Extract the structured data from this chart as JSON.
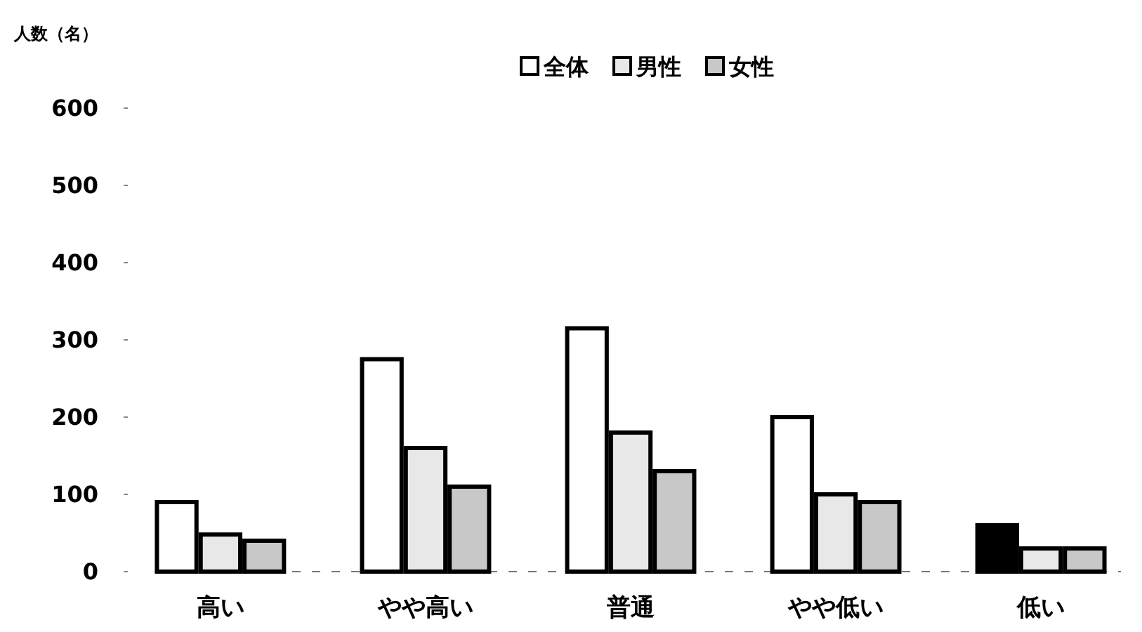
{
  "chart_data": {
    "type": "bar",
    "ylabel": "人数（名）",
    "categories": [
      "高い",
      "やや高い",
      "普通",
      "やや低い",
      "低い"
    ],
    "series": [
      {
        "name": "全体",
        "color": "#ffffff",
        "colors": [
          "#ffffff",
          "#ffffff",
          "#ffffff",
          "#ffffff",
          "#000000"
        ],
        "values": [
          90,
          275,
          315,
          200,
          60
        ]
      },
      {
        "name": "男性",
        "color": "#e8e8e8",
        "values": [
          48,
          160,
          180,
          100,
          30
        ]
      },
      {
        "name": "女性",
        "color": "#c8c8c8",
        "values": [
          40,
          110,
          130,
          90,
          30
        ]
      }
    ],
    "ylim": [
      0,
      600
    ],
    "yticks": [
      0,
      100,
      200,
      300,
      400,
      500,
      600
    ],
    "grid": false,
    "legend": "top"
  }
}
